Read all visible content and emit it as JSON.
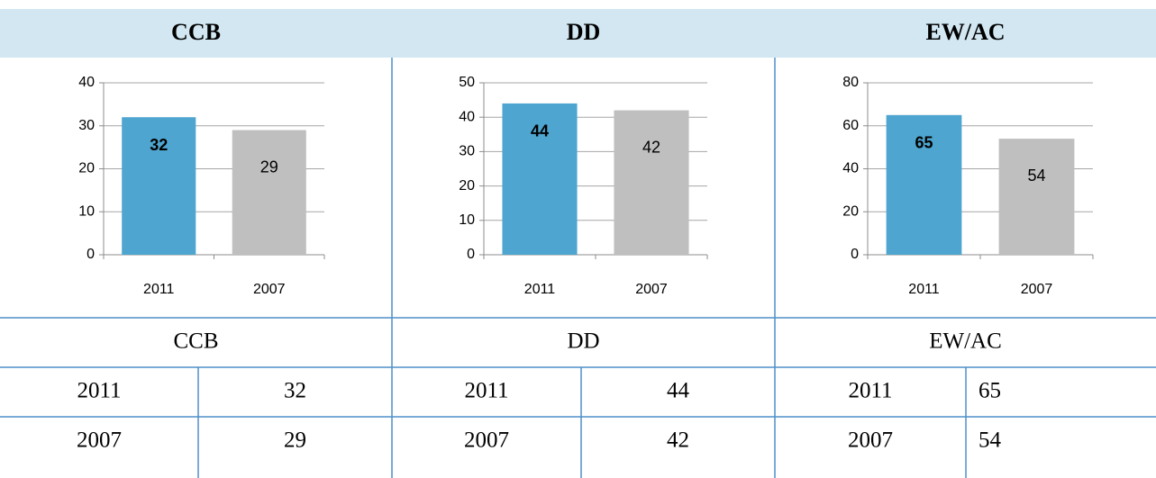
{
  "chart_data": [
    {
      "type": "bar",
      "title": "CCB",
      "categories": [
        "2011",
        "2007"
      ],
      "values": [
        32,
        29
      ],
      "colors": [
        "#4ea5cf",
        "#bfbfbf"
      ],
      "ylim": [
        0,
        40
      ],
      "yticks": [
        0,
        10,
        20,
        30,
        40
      ],
      "grid": true
    },
    {
      "type": "bar",
      "title": "DD",
      "categories": [
        "2011",
        "2007"
      ],
      "values": [
        44,
        42
      ],
      "colors": [
        "#4ea5cf",
        "#bfbfbf"
      ],
      "ylim": [
        0,
        50
      ],
      "yticks": [
        0,
        10,
        20,
        30,
        40,
        50
      ],
      "grid": true
    },
    {
      "type": "bar",
      "title": "EW/AC",
      "categories": [
        "2011",
        "2007"
      ],
      "values": [
        65,
        54
      ],
      "colors": [
        "#4ea5cf",
        "#bfbfbf"
      ],
      "ylim": [
        0,
        80
      ],
      "yticks": [
        0,
        20,
        40,
        60,
        80
      ],
      "grid": true
    }
  ]
}
